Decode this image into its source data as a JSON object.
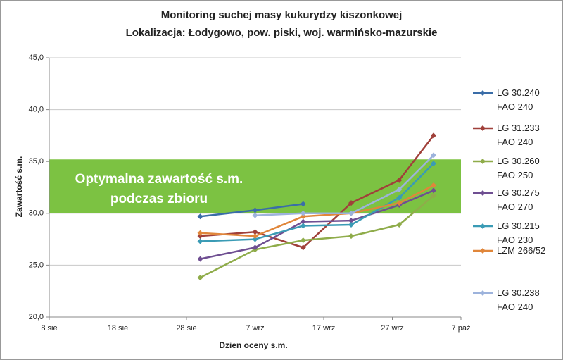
{
  "chart_data": {
    "type": "line",
    "title": [
      "Monitoring suchej masy kukurydzy kiszonkowej",
      "Lokalizacja: Łodygowo, pow. piski, woj. warmińsko-mazurskie"
    ],
    "x_label": "Dzien oceny s.m.",
    "y_label": "Zawartość s.m.",
    "x": [
      242,
      250,
      257,
      264,
      271,
      276
    ],
    "series": [
      {
        "name": "LG 30.240\nFAO 240",
        "color": "#3a6da8",
        "values": [
          29.7,
          30.3,
          30.9,
          null,
          null,
          null
        ]
      },
      {
        "name": "LG 31.233\nFAO 240",
        "color": "#a0403a",
        "values": [
          27.8,
          28.2,
          26.7,
          31.0,
          33.2,
          37.5
        ]
      },
      {
        "name": "LG 30.260\nFAO 250",
        "color": "#8fac4a",
        "values": [
          23.8,
          26.5,
          27.4,
          27.8,
          28.9,
          31.7
        ]
      },
      {
        "name": "LG 30.275\nFAO 270",
        "color": "#6f4f92",
        "values": [
          25.6,
          26.7,
          29.2,
          29.3,
          30.8,
          32.2
        ]
      },
      {
        "name": "LG 30.215\nFAO 230",
        "color": "#3a9bb5",
        "values": [
          27.3,
          27.5,
          28.8,
          28.9,
          31.5,
          34.8
        ]
      },
      {
        "name": "LZM 266/52",
        "color": "#e0863a",
        "values": [
          28.1,
          27.8,
          29.7,
          30.0,
          31.0,
          32.7
        ]
      },
      {
        "name": "LG 30.238\nFAO 240",
        "color": "#9db3dc",
        "values": [
          null,
          29.8,
          30.0,
          30.0,
          32.3,
          35.6
        ]
      }
    ],
    "optimal_band": {
      "range": [
        30,
        35.2
      ],
      "color": "#7cc242",
      "label": [
        "Optymalna zawartość s.m.",
        "podczas zbioru"
      ]
    },
    "xlim": [
      220,
      280
    ],
    "xticks": [
      {
        "value": 220,
        "label": "8 sie"
      },
      {
        "value": 230,
        "label": "18 sie"
      },
      {
        "value": 240,
        "label": "28 sie"
      },
      {
        "value": 250,
        "label": "7 wrz"
      },
      {
        "value": 260,
        "label": "17 wrz"
      },
      {
        "value": 270,
        "label": "27 wrz"
      },
      {
        "value": 280,
        "label": "7 paź"
      }
    ],
    "ylim": [
      20,
      45
    ],
    "yticks": [
      {
        "value": 20,
        "label": "20,0"
      },
      {
        "value": 25,
        "label": "25,0"
      },
      {
        "value": 30,
        "label": "30,0"
      },
      {
        "value": 35,
        "label": "35,0"
      },
      {
        "value": 40,
        "label": "40,0"
      },
      {
        "value": 45,
        "label": "45,0"
      }
    ],
    "grid": true
  }
}
